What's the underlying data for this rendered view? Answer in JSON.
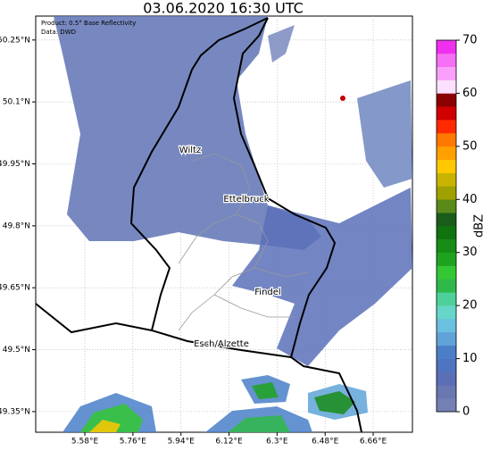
{
  "chart_data": {
    "type": "map",
    "title": "03.06.2020 16:30 UTC",
    "annotations": [
      "Product: 0.5° Base Reflectivity",
      "Data: DWD"
    ],
    "places": [
      "Wiltz",
      "Ettelbruck",
      "Findel",
      "Esch/Alzette"
    ],
    "xlim": [
      5.396,
      6.807
    ],
    "ylim": [
      49.3,
      50.308
    ],
    "xticks": [
      {
        "value": 5.58,
        "label": "5.58°E"
      },
      {
        "value": 5.76,
        "label": "5.76°E"
      },
      {
        "value": 5.94,
        "label": "5.94°E"
      },
      {
        "value": 6.12,
        "label": "6.12°E"
      },
      {
        "value": 6.3,
        "label": "6.3°E"
      },
      {
        "value": 6.48,
        "label": "6.48°E"
      },
      {
        "value": 6.66,
        "label": "6.66°E"
      }
    ],
    "yticks": [
      {
        "value": 49.35,
        "label": "49.35°N"
      },
      {
        "value": 49.5,
        "label": "49.5°N"
      },
      {
        "value": 49.65,
        "label": "49.65°N"
      },
      {
        "value": 49.8,
        "label": "49.8°N"
      },
      {
        "value": 49.95,
        "label": "49.95°N"
      },
      {
        "value": 50.1,
        "label": "50.1°N"
      },
      {
        "value": 50.25,
        "label": "50.25°N"
      }
    ],
    "grid": true,
    "colorbar": {
      "label": "dBZ",
      "lim": [
        0,
        70
      ],
      "ticks": [
        0,
        10,
        20,
        30,
        40,
        50,
        60,
        70
      ],
      "colors": [
        "#7480b4",
        "#6a78b2",
        "#5a6fb5",
        "#4f74c0",
        "#4a7fc8",
        "#5fa3d8",
        "#6bbfe0",
        "#66d6c8",
        "#4ed09a",
        "#2fb84a",
        "#34c734",
        "#1fa31f",
        "#178c17",
        "#0f730f",
        "#1a5c1a",
        "#5a8a1a",
        "#a0a000",
        "#c8b400",
        "#ffc800",
        "#ffa000",
        "#ff7800",
        "#ff2a00",
        "#d00000",
        "#8b0000",
        "#fde0fd",
        "#faa0fa",
        "#f570f5",
        "#f030f0"
      ]
    }
  }
}
